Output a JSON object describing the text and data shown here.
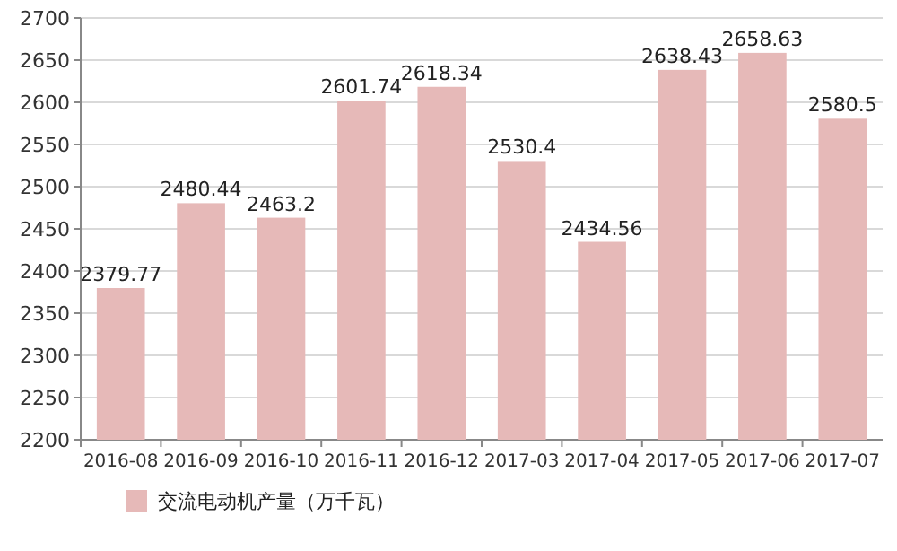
{
  "chart_data": {
    "type": "bar",
    "categories": [
      "2016-08",
      "2016-09",
      "2016-10",
      "2016-11",
      "2016-12",
      "2017-03",
      "2017-04",
      "2017-05",
      "2017-06",
      "2017-07"
    ],
    "series": [
      {
        "name": "交流电动机产量（万千瓦）",
        "color": "#e6b9b8",
        "values": [
          2379.77,
          2480.44,
          2463.2,
          2601.74,
          2618.34,
          2530.4,
          2434.56,
          2638.43,
          2658.63,
          2580.5
        ]
      }
    ],
    "ylim": [
      2200,
      2700
    ],
    "yticks": [
      2200,
      2250,
      2300,
      2350,
      2400,
      2450,
      2500,
      2550,
      2600,
      2650,
      2700
    ],
    "grid": "y",
    "legend": "bottom left",
    "data_labels": true
  }
}
